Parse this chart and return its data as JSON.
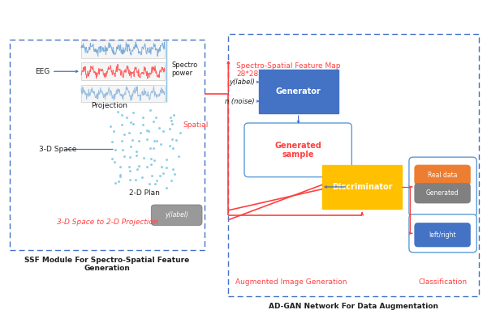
{
  "ssf_label": "SSF Module For Spectro-Spatial Feature\nGeneration",
  "adgan_label": "AD-GAN Network For Data Augmentation",
  "aug_label": "Augmented Image Generation",
  "class_label": "Classification",
  "spectro_map_label": "Spectro-Spatial Feature Map\n28*28",
  "proj_label": "3-D Space to 2-D Projection",
  "eeg_label": "EEG",
  "spectro_power_label": "Spectro\npower",
  "projection_label": "Projection",
  "space_label": "3-D Space",
  "spatial_label": "Spatial",
  "plan_label": "2-D Plan",
  "generator_label": "Generator",
  "gen_sample_label": "Generated\nsample",
  "discriminator_label": "Discriminator",
  "y_label": "y(label)",
  "n_label": "n (noise)",
  "real_data_label": "Real data",
  "generated_label": "Generated",
  "leftright_label": "left/right",
  "ylabel2_label": "y(label)",
  "box_blue": "#4472C4",
  "generator_color": "#4472C4",
  "gen_sample_border": "#5B9BD5",
  "discriminator_color": "#FFC000",
  "real_data_color": "#ED7D31",
  "generated_color": "#808080",
  "leftright_color": "#4472C4",
  "output_box_border": "#5B9BD5",
  "arrow_blue": "#4472C4",
  "arrow_red": "#FF4040",
  "text_red": "#FF4040",
  "text_black": "#1F1F1F",
  "wave_blue": "#5B9BD5",
  "wave_red": "#FF6060",
  "dot_color": "#7EC8E3",
  "badge_color": "#999999"
}
